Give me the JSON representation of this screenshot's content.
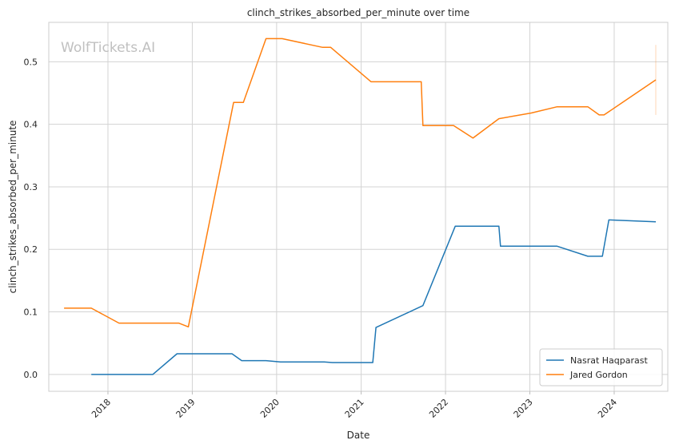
{
  "chart_data": {
    "type": "line",
    "title": "clinch_strikes_absorbed_per_minute over time",
    "xlabel": "Date",
    "ylabel": "clinch_strikes_absorbed_per_minute",
    "watermark": "WolfTickets.AI",
    "grid": true,
    "legend_position": "bottom-right",
    "x_tick_labels": [
      "2018",
      "2019",
      "2020",
      "2021",
      "2022",
      "2023",
      "2024"
    ],
    "y_ticks": [
      "0.0",
      "0.1",
      "0.2",
      "0.3",
      "0.4",
      "0.5"
    ],
    "xlim": [
      "2017-04-20",
      "2024-08-20"
    ],
    "ylim": [
      -0.027,
      0.563
    ],
    "series": [
      {
        "name": "Nasrat Haqparast",
        "color": "#1f77b4",
        "points": [
          [
            "2017-10-21",
            0.0
          ],
          [
            "2018-07-14",
            0.0
          ],
          [
            "2018-10-27",
            0.033
          ],
          [
            "2019-06-22",
            0.033
          ],
          [
            "2019-08-03",
            0.022
          ],
          [
            "2019-11-16",
            0.022
          ],
          [
            "2020-01-18",
            0.02
          ],
          [
            "2020-07-25",
            0.02
          ],
          [
            "2020-08-29",
            0.019
          ],
          [
            "2021-02-20",
            0.019
          ],
          [
            "2021-03-06",
            0.075
          ],
          [
            "2021-09-25",
            0.11
          ],
          [
            "2022-02-12",
            0.237
          ],
          [
            "2022-08-20",
            0.237
          ],
          [
            "2022-08-27",
            0.205
          ],
          [
            "2023-04-29",
            0.205
          ],
          [
            "2023-09-09",
            0.189
          ],
          [
            "2023-11-11",
            0.189
          ],
          [
            "2023-12-09",
            0.247
          ],
          [
            "2024-06-29",
            0.244
          ]
        ]
      },
      {
        "name": "Jared Gordon",
        "color": "#ff7f0e",
        "points": [
          [
            "2017-06-25",
            0.106
          ],
          [
            "2017-10-21",
            0.106
          ],
          [
            "2018-02-18",
            0.082
          ],
          [
            "2018-11-03",
            0.082
          ],
          [
            "2018-12-15",
            0.076
          ],
          [
            "2019-06-29",
            0.435
          ],
          [
            "2019-08-10",
            0.435
          ],
          [
            "2019-11-16",
            0.537
          ],
          [
            "2020-01-25",
            0.537
          ],
          [
            "2020-07-18",
            0.523
          ],
          [
            "2020-08-22",
            0.523
          ],
          [
            "2021-02-13",
            0.468
          ],
          [
            "2021-09-18",
            0.468
          ],
          [
            "2021-09-25",
            0.398
          ],
          [
            "2022-02-05",
            0.398
          ],
          [
            "2022-04-30",
            0.378
          ],
          [
            "2022-08-20",
            0.409
          ],
          [
            "2023-01-07",
            0.418
          ],
          [
            "2023-04-29",
            0.428
          ],
          [
            "2023-09-09",
            0.428
          ],
          [
            "2023-10-28",
            0.415
          ],
          [
            "2023-11-18",
            0.415
          ],
          [
            "2024-06-29",
            0.471
          ]
        ]
      }
    ],
    "error_band": {
      "color": "#ff7f0e",
      "x": "2024-06-29",
      "range": [
        0.415,
        0.527
      ]
    }
  }
}
